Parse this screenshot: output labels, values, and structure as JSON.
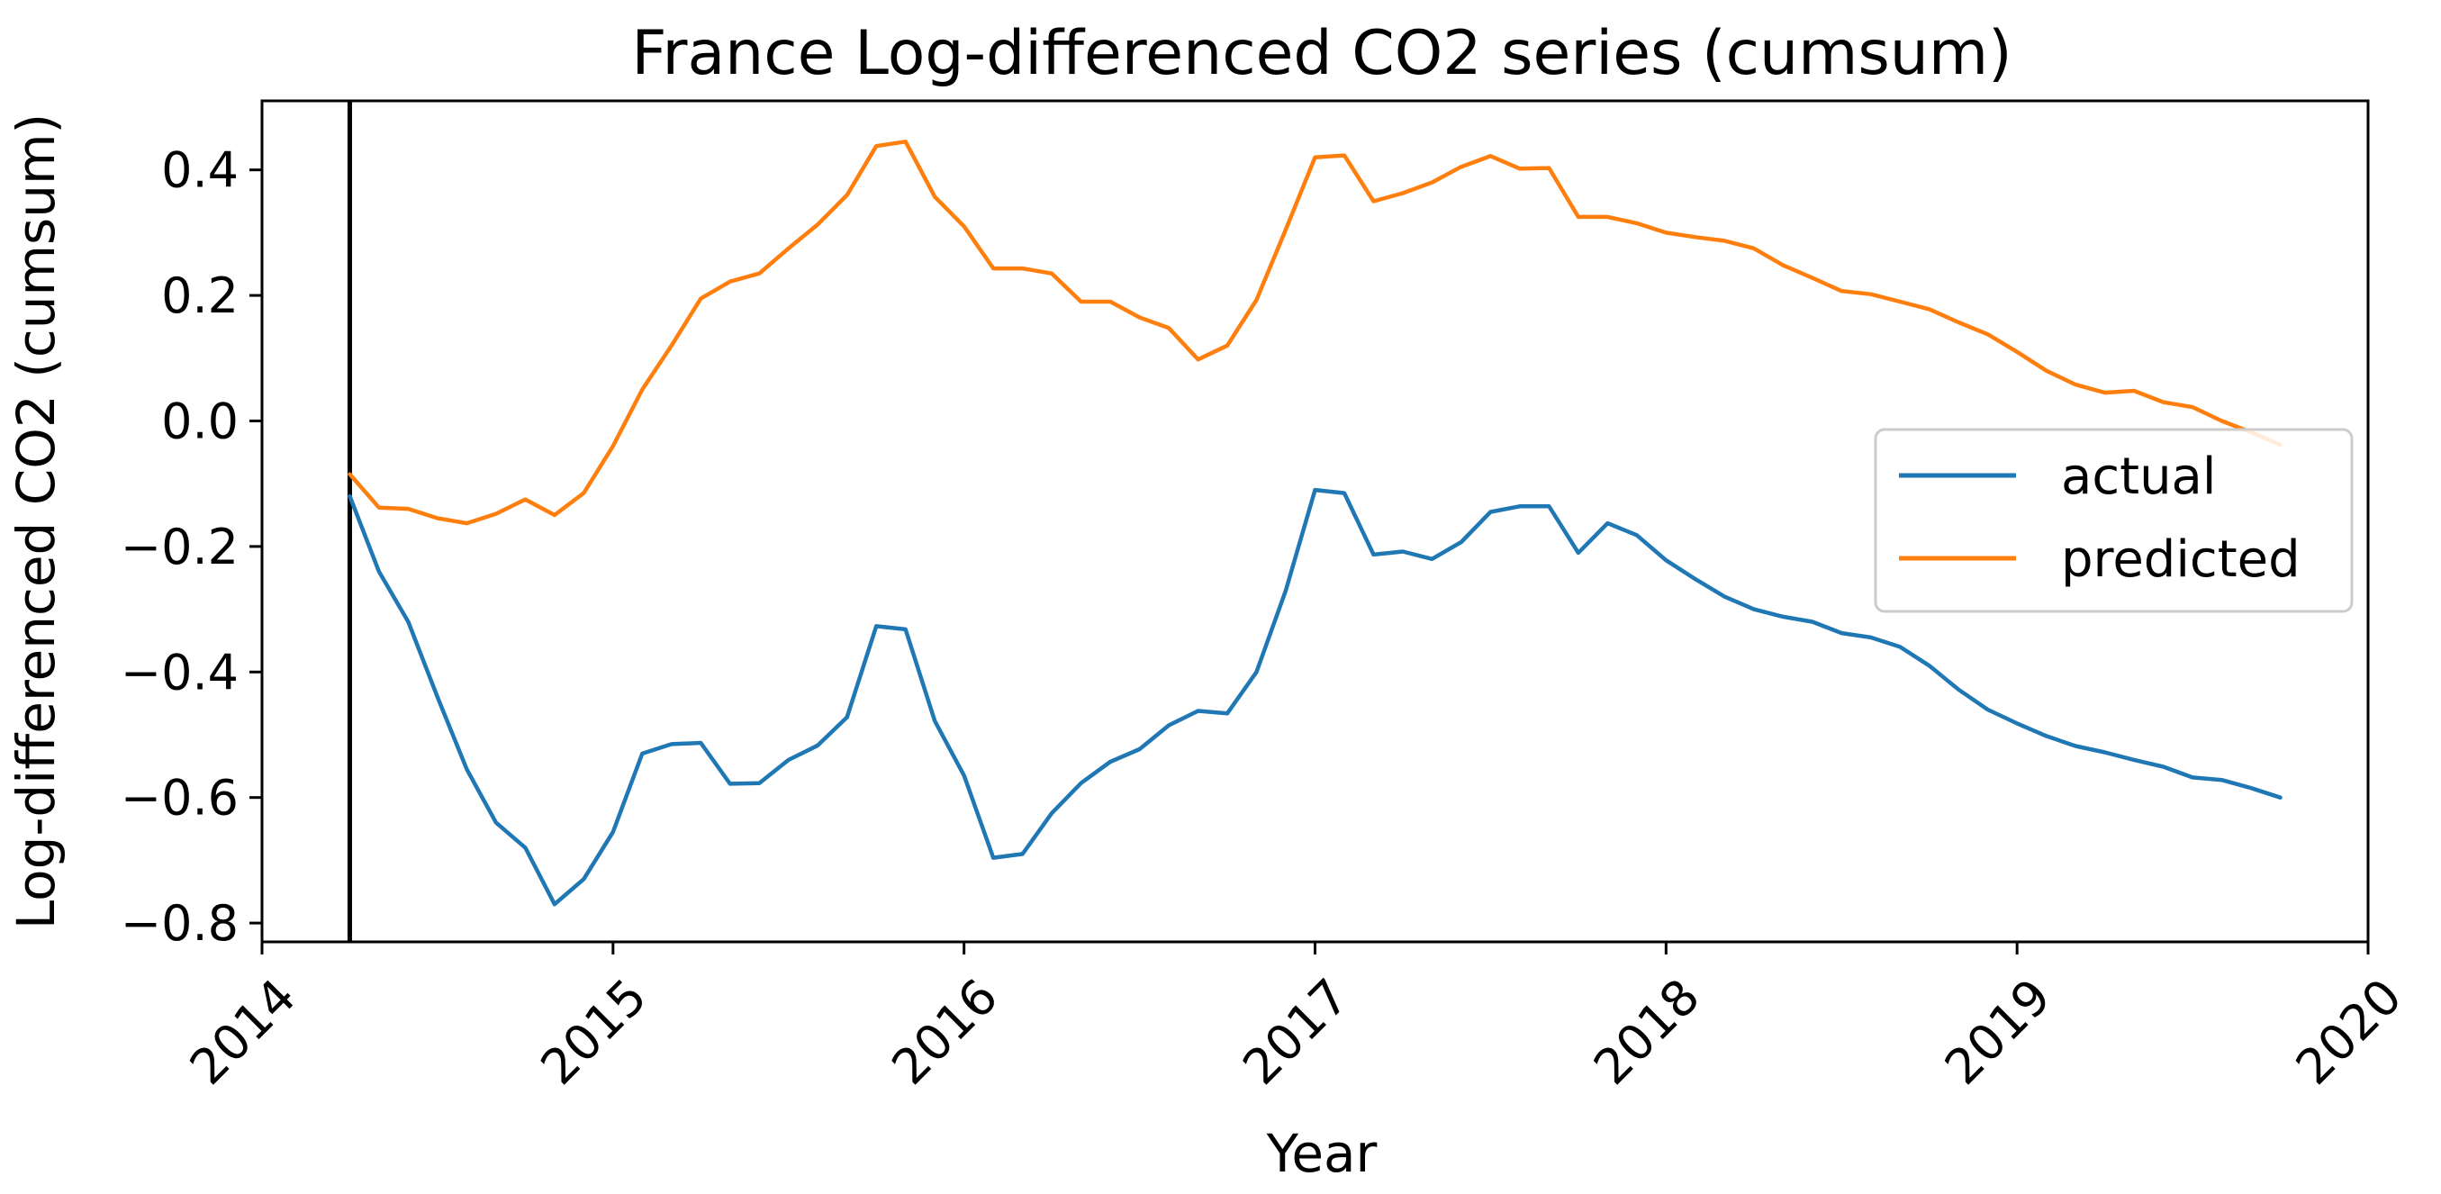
{
  "chart_data": {
    "type": "line",
    "title": "France Log-differenced CO2 series (cumsum)",
    "xlabel": "Year",
    "ylabel": "Log-differenced CO2 (cumsum)",
    "x_start": "2014-04",
    "x_end": "2019-10",
    "xlim": [
      "2014-01",
      "2020-01"
    ],
    "ylim": [
      -0.83,
      0.51
    ],
    "x_ticks": [
      {
        "date": "2014-01",
        "label": "2014"
      },
      {
        "date": "2015-01",
        "label": "2015"
      },
      {
        "date": "2016-01",
        "label": "2016"
      },
      {
        "date": "2017-01",
        "label": "2017"
      },
      {
        "date": "2018-01",
        "label": "2018"
      },
      {
        "date": "2019-01",
        "label": "2019"
      },
      {
        "date": "2020-01",
        "label": "2020"
      }
    ],
    "y_ticks": [
      {
        "value": 0.4,
        "label": "0.4"
      },
      {
        "value": 0.2,
        "label": "0.2"
      },
      {
        "value": 0.0,
        "label": "0.0"
      },
      {
        "value": -0.2,
        "label": "−0.2"
      },
      {
        "value": -0.4,
        "label": "−0.4"
      },
      {
        "value": -0.6,
        "label": "−0.6"
      },
      {
        "value": -0.8,
        "label": "−0.8"
      }
    ],
    "vertical_line": {
      "date": "2014-04",
      "color": "#000000"
    },
    "grid": false,
    "legend_position": "center-right",
    "series": [
      {
        "name": "actual",
        "color": "#1f77b4",
        "values": [
          -0.12,
          -0.24,
          -0.32,
          -0.44,
          -0.555,
          -0.64,
          -0.68,
          -0.77,
          -0.73,
          -0.655,
          -0.53,
          -0.515,
          -0.513,
          -0.578,
          -0.577,
          -0.54,
          -0.517,
          -0.472,
          -0.327,
          -0.332,
          -0.478,
          -0.565,
          -0.696,
          -0.69,
          -0.625,
          -0.577,
          -0.543,
          -0.523,
          -0.485,
          -0.462,
          -0.466,
          -0.4,
          -0.27,
          -0.11,
          -0.115,
          -0.213,
          -0.208,
          -0.22,
          -0.193,
          -0.145,
          -0.136,
          -0.136,
          -0.21,
          -0.163,
          -0.182,
          -0.222,
          -0.252,
          -0.28,
          -0.3,
          -0.312,
          -0.32,
          -0.338,
          -0.345,
          -0.36,
          -0.39,
          -0.428,
          -0.46,
          -0.482,
          -0.502,
          -0.518,
          -0.528,
          -0.54,
          -0.551,
          -0.568,
          -0.572,
          -0.585,
          -0.6
        ]
      },
      {
        "name": "predicted",
        "color": "#ff7f0e",
        "values": [
          -0.085,
          -0.138,
          -0.14,
          -0.155,
          -0.163,
          -0.148,
          -0.125,
          -0.15,
          -0.115,
          -0.04,
          0.05,
          0.12,
          0.195,
          0.222,
          0.235,
          0.275,
          0.313,
          0.36,
          0.438,
          0.445,
          0.357,
          0.31,
          0.243,
          0.243,
          0.235,
          0.19,
          0.19,
          0.165,
          0.148,
          0.098,
          0.12,
          0.193,
          0.305,
          0.42,
          0.423,
          0.35,
          0.363,
          0.38,
          0.405,
          0.422,
          0.402,
          0.403,
          0.325,
          0.325,
          0.315,
          0.3,
          0.293,
          0.287,
          0.275,
          0.248,
          0.228,
          0.207,
          0.202,
          0.19,
          0.178,
          0.157,
          0.138,
          0.11,
          0.08,
          0.058,
          0.045,
          0.048,
          0.03,
          0.022,
          0.0,
          -0.018,
          -0.038
        ]
      }
    ]
  }
}
